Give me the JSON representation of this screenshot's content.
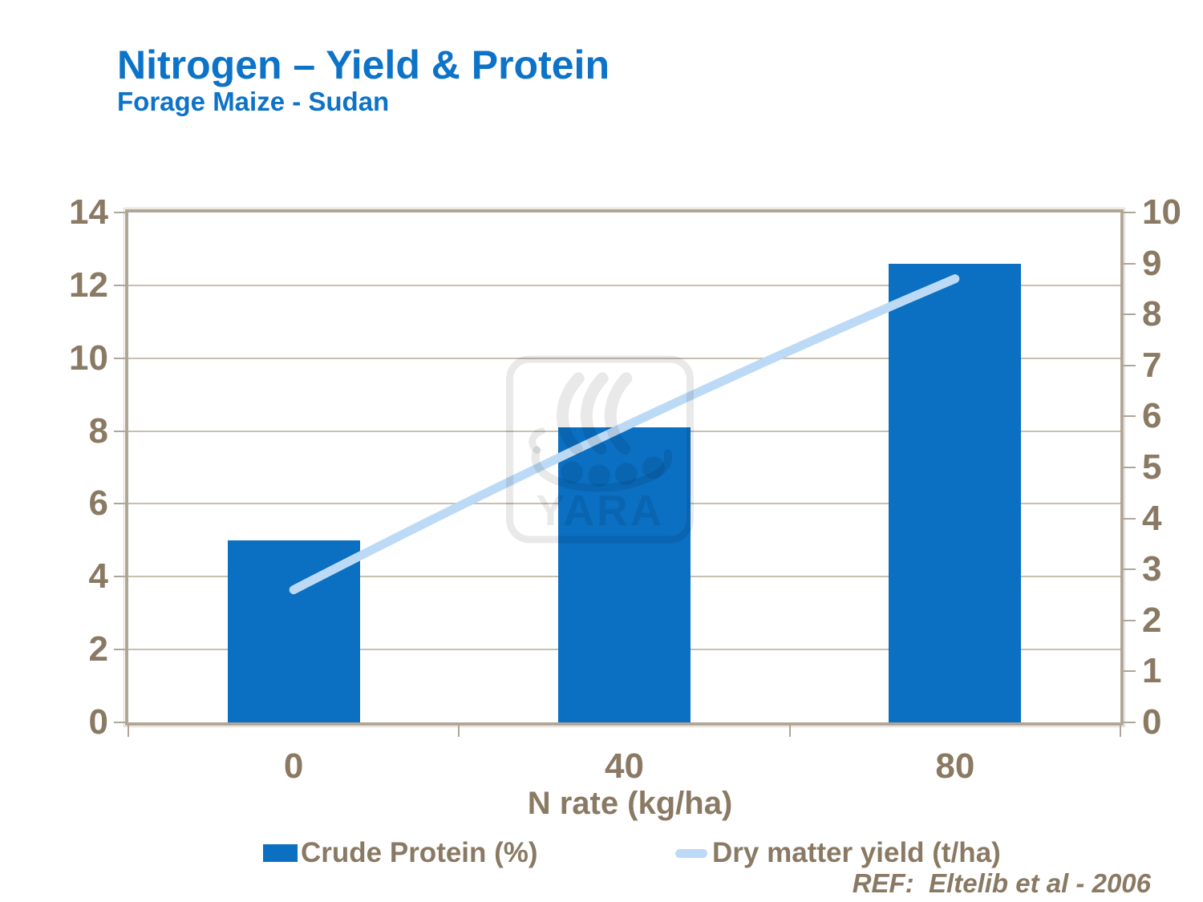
{
  "header": {
    "title": "Nitrogen – Yield & Protein",
    "subtitle": "Forage Maize - Sudan"
  },
  "chart_data": {
    "type": "bar",
    "categories": [
      "0",
      "40",
      "80"
    ],
    "series": [
      {
        "name": "Crude Protein (%)",
        "type": "bar",
        "axis": "left",
        "values": [
          5.0,
          8.1,
          12.6
        ],
        "color": "#0b6fc2"
      },
      {
        "name": "Dry matter yield (t/ha)",
        "type": "line",
        "axis": "right",
        "values": [
          2.6,
          5.8,
          8.7
        ],
        "color": "#bcdaf6"
      }
    ],
    "title": "Nitrogen – Yield & Protein",
    "subtitle": "Forage Maize - Sudan",
    "xlabel": "N rate (kg/ha)",
    "ylabel_left": "",
    "ylabel_right": "",
    "left_axis": {
      "min": 0,
      "max": 14,
      "step": 2,
      "ticks": [
        14,
        12,
        10,
        8,
        6,
        4,
        2,
        0
      ]
    },
    "right_axis": {
      "min": 0,
      "max": 10,
      "step": 1,
      "ticks": [
        10,
        9,
        8,
        7,
        6,
        5,
        4,
        3,
        2,
        1,
        0
      ]
    },
    "grid": true,
    "legend_position": "bottom"
  },
  "legend": {
    "bar_label": "Crude Protein (%)",
    "line_label": "Dry matter yield (t/ha)"
  },
  "watermark": {
    "text": "YARA"
  },
  "footer": {
    "ref": "REF:  Eltelib et al - 2006"
  },
  "colors": {
    "title_blue": "#0d73c8",
    "bar_blue": "#0b6fc2",
    "line_light_blue": "#bcdaf6",
    "axis_text_brown": "#8a7963",
    "gridline": "#c8bfb1",
    "frame": "#b0a698"
  }
}
